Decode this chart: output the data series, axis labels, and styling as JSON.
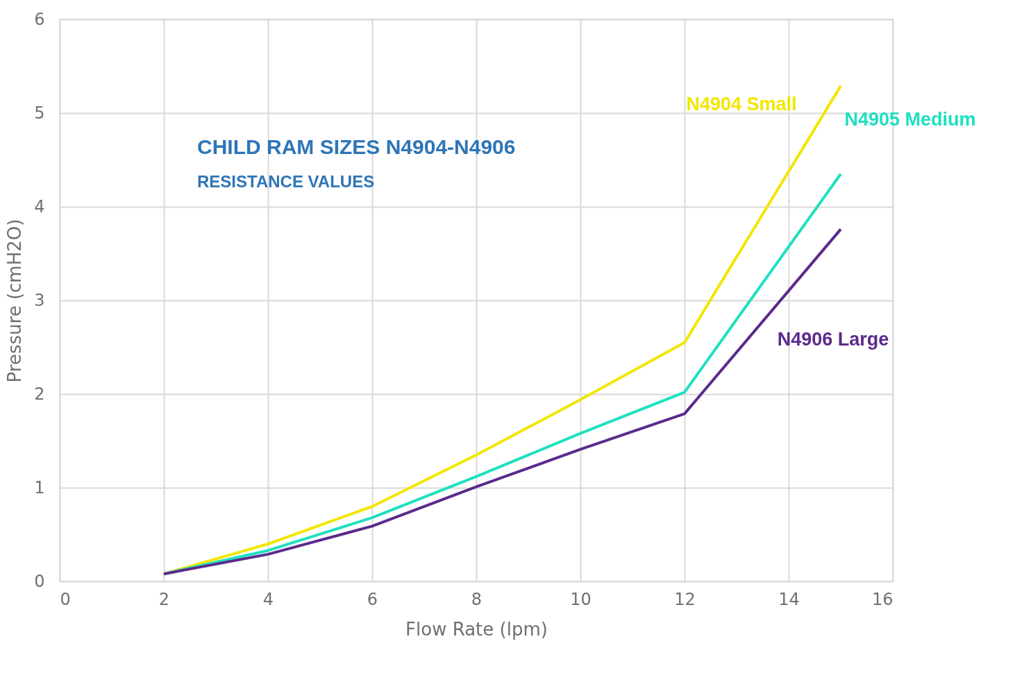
{
  "chart_data": {
    "type": "line",
    "title": "CHILD RAM SIZES N4904-N4906",
    "subtitle": "RESISTANCE VALUES",
    "xlabel": "Flow Rate (lpm)",
    "ylabel": "Pressure (cmH2O)",
    "x": [
      2,
      4,
      6,
      8,
      10,
      12,
      15
    ],
    "series": [
      {
        "name": "N4904 Small",
        "color": "#f2e600",
        "values": [
          0.08,
          0.4,
          0.8,
          1.35,
          1.94,
          2.55,
          5.29
        ]
      },
      {
        "name": "N4905 Medium",
        "color": "#1ee0c0",
        "values": [
          0.08,
          0.33,
          0.68,
          1.12,
          1.58,
          2.02,
          4.35
        ]
      },
      {
        "name": "N4906 Large",
        "color": "#5b2a8c",
        "values": [
          0.08,
          0.29,
          0.59,
          1.01,
          1.41,
          1.79,
          3.76
        ]
      }
    ],
    "xlim": [
      0,
      16
    ],
    "xticks": [
      0,
      2,
      4,
      6,
      8,
      10,
      12,
      14,
      16
    ],
    "ylim": [
      0,
      6
    ],
    "yticks": [
      0,
      1,
      2,
      3,
      4,
      5,
      6
    ],
    "grid": true,
    "legend": false,
    "marker": "none",
    "line_style": "solid"
  }
}
